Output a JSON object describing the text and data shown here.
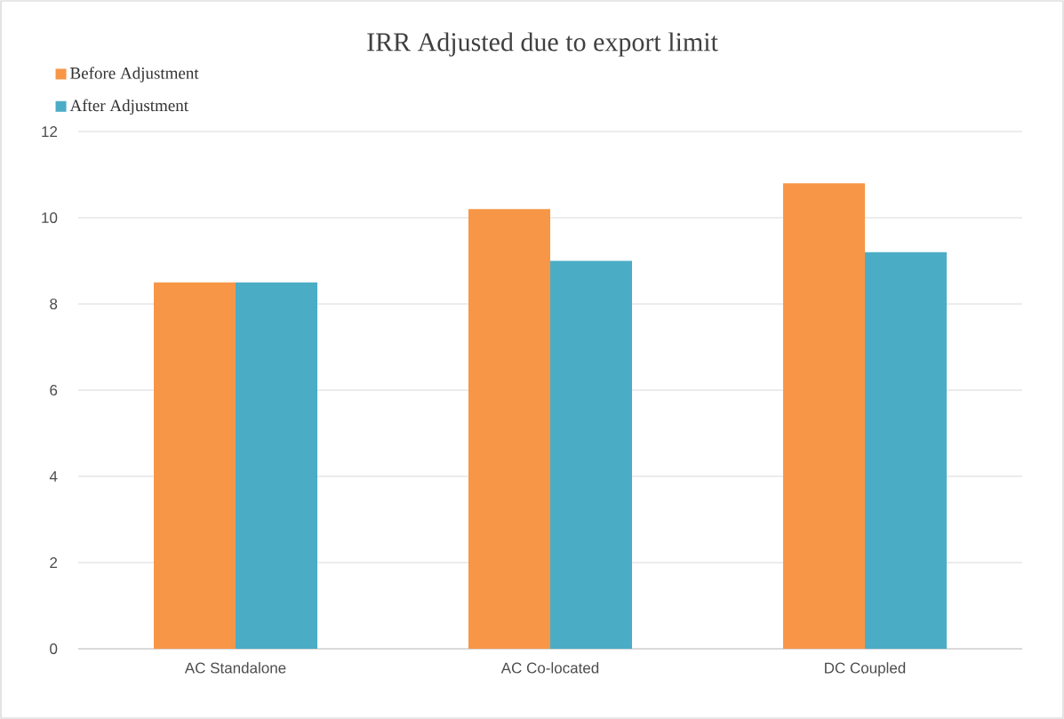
{
  "chart_data": {
    "type": "bar",
    "title": "IRR Adjusted due to export limit",
    "categories": [
      "AC Standalone",
      "AC Co-located",
      "DC Coupled"
    ],
    "series": [
      {
        "name": "Before Adjustment",
        "color": "#f79646",
        "values": [
          8.5,
          10.2,
          10.8
        ]
      },
      {
        "name": "After Adjustment",
        "color": "#4bacc6",
        "values": [
          8.5,
          9.0,
          9.2
        ]
      }
    ],
    "ylim": [
      0,
      12
    ],
    "yticks": [
      0,
      2,
      4,
      6,
      8,
      10,
      12
    ],
    "grid": "y",
    "legend": "top left"
  }
}
